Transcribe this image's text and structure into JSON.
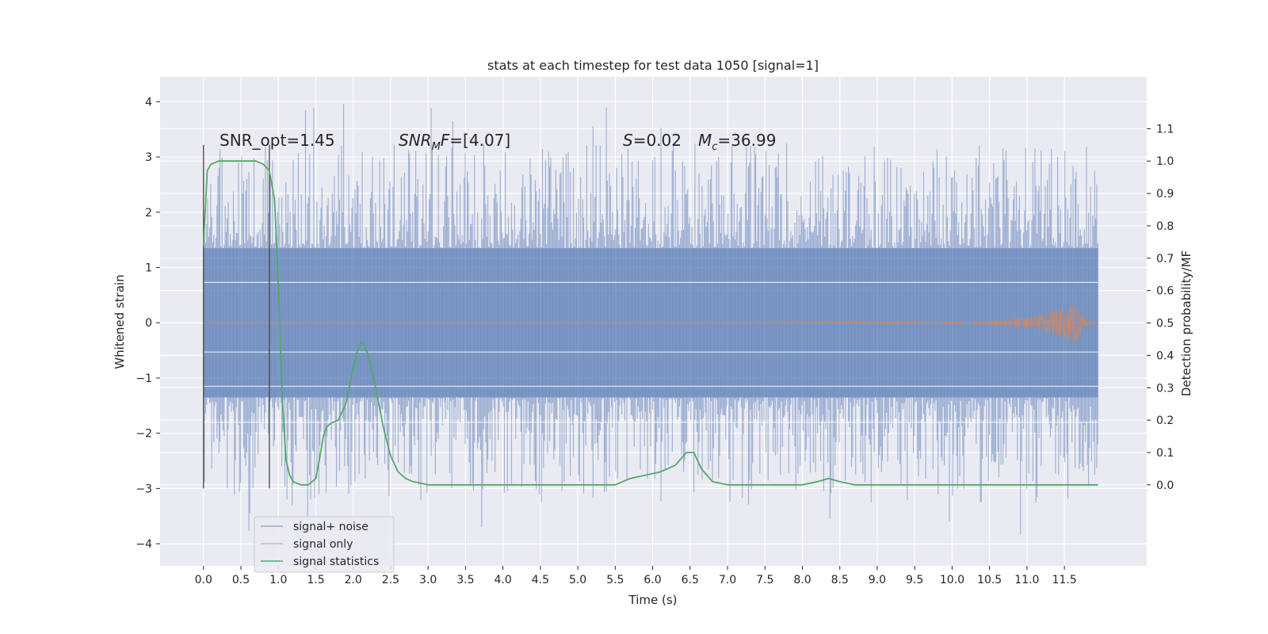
{
  "chart_data": {
    "type": "line",
    "title": "stats at each timestep for test data 1050 [signal=1]",
    "xlabel": "Time (s)",
    "ylabel": "Whitened strain",
    "y2label": "Detection probability/MF",
    "xlim": [
      -0.58,
      12.6
    ],
    "ylim": [
      -4.4,
      4.45
    ],
    "y2lim": [
      -0.25,
      1.26
    ],
    "xticks": [
      0.0,
      0.5,
      1.0,
      1.5,
      2.0,
      2.5,
      3.0,
      3.5,
      4.0,
      4.5,
      5.0,
      5.5,
      6.0,
      6.5,
      7.0,
      7.5,
      8.0,
      8.5,
      9.0,
      9.5,
      10.0,
      10.5,
      11.0,
      11.5
    ],
    "xtick_labels": [
      "0.0",
      "0.5",
      "1.0",
      "1.5",
      "2.0",
      "2.5",
      "3.0",
      "3.5",
      "4.0",
      "4.5",
      "5.0",
      "5.5",
      "6.0",
      "6.5",
      "7.0",
      "7.5",
      "8.0",
      "8.5",
      "9.0",
      "9.5",
      "10.0",
      "10.5",
      "11.0",
      "11.5"
    ],
    "yticks": [
      -4,
      -3,
      -2,
      -1,
      0,
      1,
      2,
      3,
      4
    ],
    "ytick_labels": [
      "−4",
      "−3",
      "−2",
      "−1",
      "0",
      "1",
      "2",
      "3",
      "4"
    ],
    "y2ticks": [
      0.0,
      0.1,
      0.2,
      0.3,
      0.4,
      0.5,
      0.6,
      0.7,
      0.8,
      0.9,
      1.0,
      1.1
    ],
    "y2tick_labels": [
      "0.0",
      "0.1",
      "0.2",
      "0.3",
      "0.4",
      "0.5",
      "0.6",
      "0.7",
      "0.8",
      "0.9",
      "1.0",
      "1.1"
    ],
    "grid": true,
    "legend_position": "lower-left",
    "annotations": {
      "snr_opt": "SNR_opt=1.45",
      "snr_mf": "=[4.07]",
      "s_val": "=0.02",
      "mc_val": "=36.99",
      "snr_mf_symbol": "SNR",
      "snr_mf_sub": "M",
      "snr_mf_suffix": "F",
      "s_symbol": "S",
      "mc_symbol": "M",
      "mc_sub": "c"
    },
    "vertical_markers": [
      0.0,
      0.88
    ],
    "noise": {
      "t_start": 0.0,
      "t_end": 11.95,
      "band_upper": 1.35,
      "band_lower": -1.35,
      "max_value": 4.1,
      "min_value": -3.85
    },
    "chirp": {
      "peak_time": 11.65,
      "peak_amplitude": 0.4
    },
    "series": [
      {
        "name": "signal+ noise",
        "color": "#4c72b0"
      },
      {
        "name": "signal only",
        "color": "#dd8452"
      },
      {
        "name": "signal statistics",
        "color": "#55a868",
        "axis": "y2",
        "x": [
          0.0,
          0.05,
          0.1,
          0.2,
          0.3,
          0.5,
          0.7,
          0.8,
          0.88,
          0.95,
          1.0,
          1.05,
          1.1,
          1.15,
          1.2,
          1.3,
          1.4,
          1.5,
          1.55,
          1.6,
          1.65,
          1.7,
          1.8,
          1.9,
          2.0,
          2.05,
          2.1,
          2.15,
          2.2,
          2.3,
          2.4,
          2.5,
          2.6,
          2.7,
          2.8,
          3.0,
          3.5,
          4.0,
          4.5,
          5.0,
          5.3,
          5.5,
          5.7,
          5.9,
          6.1,
          6.3,
          6.45,
          6.55,
          6.65,
          6.8,
          7.0,
          7.5,
          8.0,
          8.2,
          8.35,
          8.5,
          8.7,
          9.0,
          9.5,
          10.0,
          10.5,
          11.0,
          11.5,
          11.7,
          11.95
        ],
        "values": [
          0.74,
          0.97,
          0.99,
          1.0,
          1.0,
          1.0,
          1.0,
          0.99,
          0.97,
          0.88,
          0.62,
          0.28,
          0.08,
          0.03,
          0.01,
          0.0,
          0.0,
          0.02,
          0.08,
          0.15,
          0.18,
          0.19,
          0.2,
          0.25,
          0.36,
          0.41,
          0.44,
          0.43,
          0.4,
          0.3,
          0.18,
          0.09,
          0.04,
          0.02,
          0.01,
          0.0,
          0.0,
          0.0,
          0.0,
          0.0,
          0.0,
          0.0,
          0.02,
          0.03,
          0.04,
          0.06,
          0.1,
          0.1,
          0.05,
          0.01,
          0.0,
          0.0,
          0.0,
          0.01,
          0.02,
          0.01,
          0.0,
          0.0,
          0.0,
          0.0,
          0.0,
          0.0,
          0.0,
          0.0,
          0.0
        ]
      }
    ]
  }
}
